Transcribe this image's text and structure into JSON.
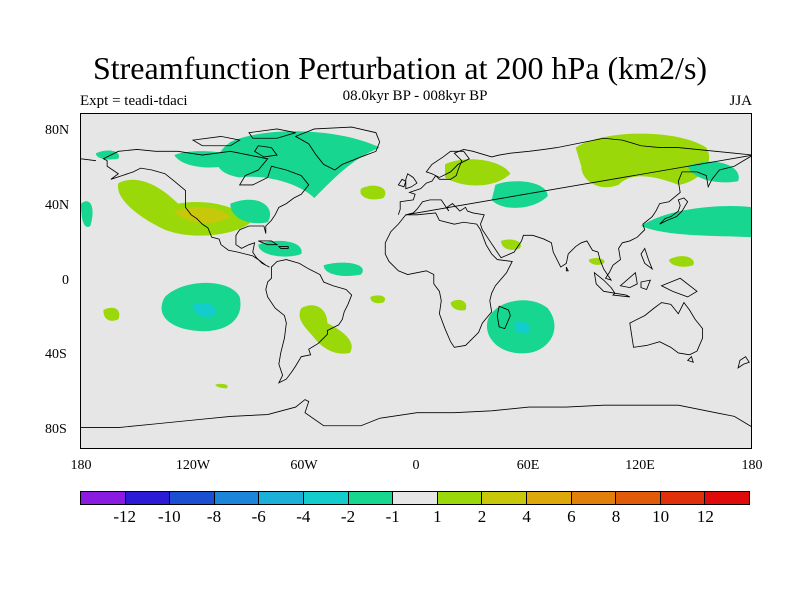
{
  "title": "Streamfunction Perturbation at 200 hPa (km2/s)",
  "subtitle": "08.0kyr BP - 008kyr BP",
  "experiment": "Expt = teadi-tdaci",
  "season": "JJA",
  "map": {
    "background_color": "#e6e6e6",
    "coastline_color": "#000000",
    "lat_ticks": [
      "80N",
      "40N",
      "0",
      "40S",
      "80S"
    ],
    "lon_ticks": [
      "180",
      "120W",
      "60W",
      "0",
      "60E",
      "120E",
      "180"
    ]
  },
  "colorbar": {
    "colors": [
      "#8a1be0",
      "#2c1bd6",
      "#1a4fd2",
      "#1b86d8",
      "#1ab0d8",
      "#13cccc",
      "#16d690",
      "#e6e6e6",
      "#9ad80a",
      "#c8c80a",
      "#dca80a",
      "#e0800a",
      "#e05a0a",
      "#e0300a",
      "#e00a0a"
    ],
    "labels": [
      "-12",
      "-10",
      "-8",
      "-6",
      "-4",
      "-2",
      "-1",
      "1",
      "2",
      "4",
      "6",
      "8",
      "10",
      "12"
    ]
  },
  "anomaly_regions": [
    {
      "name": "n-atlantic-arctic-negative",
      "lon": -55,
      "lat": 70,
      "value": -1
    },
    {
      "name": "e-pacific-positive",
      "lon": -115,
      "lat": 38,
      "value": 2
    },
    {
      "name": "e-pacific-core-positive",
      "lon": -110,
      "lat": 35,
      "value": 4
    },
    {
      "name": "europe-positive",
      "lon": 30,
      "lat": 59,
      "value": 2
    },
    {
      "name": "c-asia-negative",
      "lon": 50,
      "lat": 44,
      "value": -1
    },
    {
      "name": "siberia-positive",
      "lon": 110,
      "lat": 62,
      "value": 2
    },
    {
      "name": "w-pacific-negative",
      "lon": 150,
      "lat": 30,
      "value": -1
    },
    {
      "name": "s-pacific-negative",
      "lon": -115,
      "lat": -15,
      "value": -1
    },
    {
      "name": "s-pacific-core-negative",
      "lon": -110,
      "lat": -17,
      "value": -2
    },
    {
      "name": "s-america-positive",
      "lon": -52,
      "lat": -30,
      "value": 2
    },
    {
      "name": "indian-ocean-negative",
      "lon": 55,
      "lat": -25,
      "value": -1
    },
    {
      "name": "indian-ocean-core-negative",
      "lon": 57,
      "lat": -27,
      "value": -2
    }
  ]
}
